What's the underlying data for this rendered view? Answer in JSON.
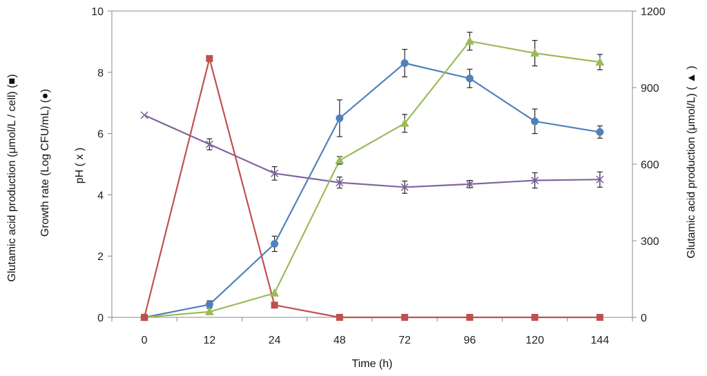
{
  "chart_data": {
    "type": "line",
    "categories": [
      "0",
      "12",
      "24",
      "48",
      "72",
      "96",
      "120",
      "144"
    ],
    "xlabel": "Time (h)",
    "ylabel_left": [
      "Glutamic acid production (μmol/L / cell) (■)",
      "Growth rate (Log CFU/mL) (●)",
      "pH ( x )"
    ],
    "ylabel_right": "Glutamic acid production (μmol/L) ( ▲ )",
    "ylim_left": [
      0,
      10
    ],
    "yticks_left": [
      0,
      2,
      4,
      6,
      8,
      10
    ],
    "ylim_right": [
      0,
      1200
    ],
    "yticks_right": [
      0,
      300,
      600,
      900,
      1200
    ],
    "grid": false,
    "series": [
      {
        "name": "Glutamic acid production per cell",
        "axis": "left",
        "marker": "square",
        "color": "#c0504d",
        "values": [
          0,
          8.45,
          0.4,
          0,
          0,
          0,
          0,
          0
        ],
        "errors": [
          0,
          0,
          0,
          0,
          0,
          0,
          0,
          0
        ]
      },
      {
        "name": "Growth rate",
        "axis": "left",
        "marker": "circle",
        "color": "#4f81bd",
        "values": [
          0,
          0.42,
          2.4,
          6.5,
          8.3,
          7.8,
          6.4,
          6.05
        ],
        "errors": [
          0,
          0.12,
          0.25,
          0.6,
          0.45,
          0.3,
          0.4,
          0.2
        ]
      },
      {
        "name": "pH",
        "axis": "left",
        "marker": "x",
        "color": "#8064a2",
        "values": [
          6.6,
          5.65,
          4.7,
          4.4,
          4.25,
          4.35,
          4.47,
          4.5
        ],
        "errors": [
          0,
          0.18,
          0.22,
          0.18,
          0.2,
          0.12,
          0.25,
          0.25
        ]
      },
      {
        "name": "Glutamic acid production",
        "axis": "right",
        "marker": "triangle",
        "color": "#9bbb59",
        "values": [
          0,
          22,
          95,
          615,
          760,
          1082,
          1035,
          1000
        ],
        "errors": [
          0,
          0,
          0,
          15,
          35,
          35,
          50,
          30
        ]
      }
    ]
  }
}
